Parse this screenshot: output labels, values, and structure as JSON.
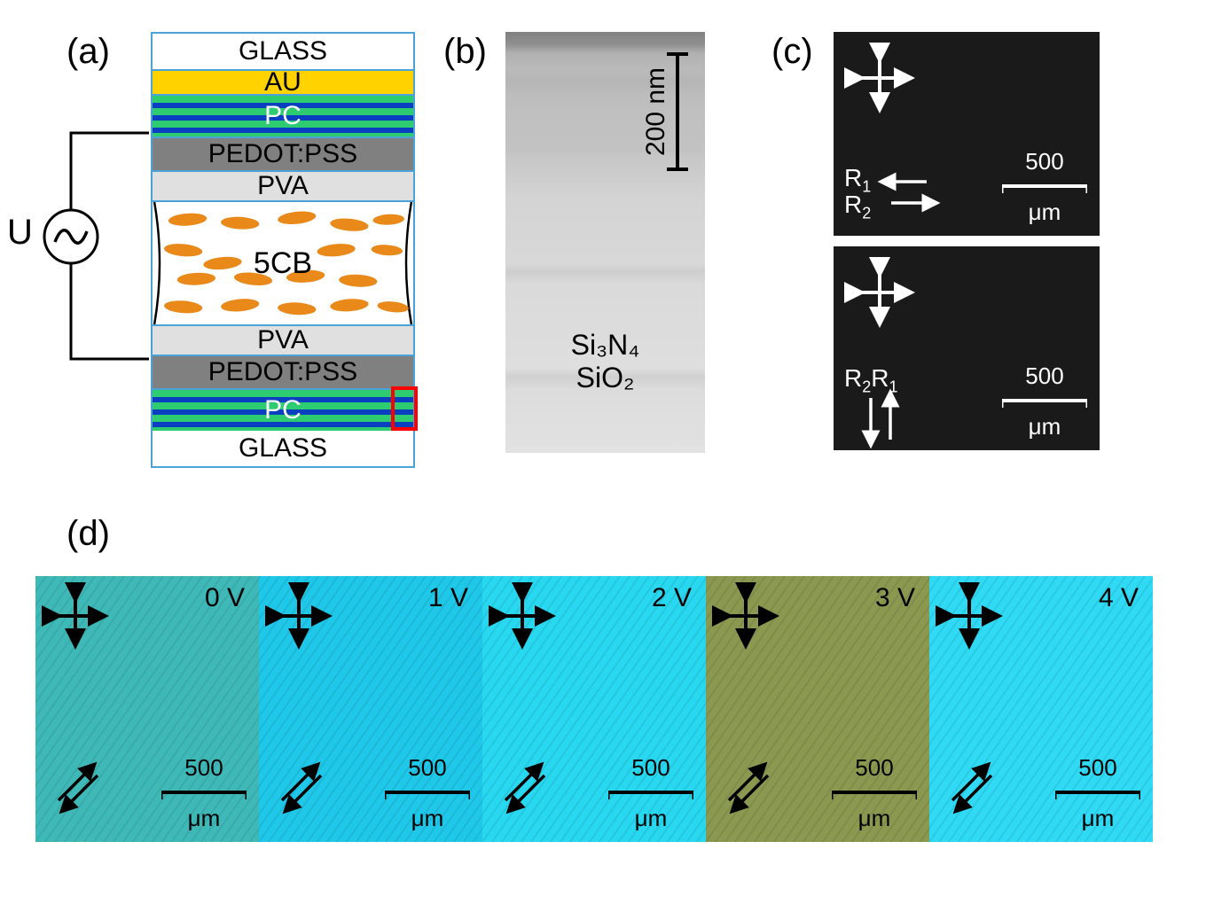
{
  "labels": {
    "a": "(a)",
    "b": "(b)",
    "c": "(c)",
    "d": "(d)"
  },
  "panel_a": {
    "voltage_symbol": "U",
    "layers_top": [
      "GLASS",
      "AU",
      "PC",
      "PEDOT:PSS",
      "PVA"
    ],
    "lc_label": "5CB",
    "layers_bottom": [
      "PVA",
      "PEDOT:PSS",
      "PC",
      "GLASS"
    ],
    "colors": {
      "glass_border": "#4aa3d8",
      "au": "#ffd200",
      "pc_green": "#2ecc71",
      "pc_blue": "#0a3fbf",
      "pedot": "#808080",
      "pva": "#e0e0e0",
      "molecule": "#e8891a",
      "red_box": "#ff0000"
    }
  },
  "panel_b": {
    "scale_value": "200 nm",
    "material_top": "Si₃N₄",
    "material_bottom": "SiO₂"
  },
  "panel_c": {
    "r1": "R",
    "r1_sub": "1",
    "r2": "R",
    "r2_sub": "2",
    "scale_value": "500",
    "scale_unit": "μm",
    "bg_color": "#1a1a1a",
    "arrow_color": "#ffffff"
  },
  "panel_d": {
    "voltages": [
      "0 V",
      "1 V",
      "2 V",
      "3 V",
      "4 V"
    ],
    "cell_colors": [
      "#3fb8b8",
      "#1fc8e8",
      "#28d8f0",
      "#8a9850",
      "#30daf5"
    ],
    "scale_value": "500",
    "scale_unit": "μm",
    "arrow_color": "#000000"
  }
}
